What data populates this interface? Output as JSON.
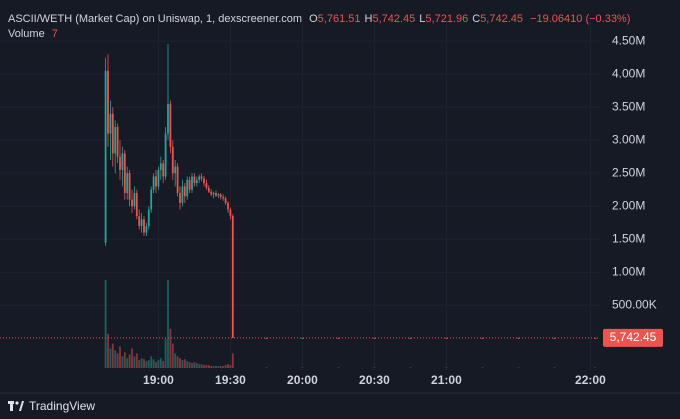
{
  "header": {
    "title": "ASCII/WETH (Market Cap) on Uniswap, 1, dexscreener.com",
    "ohlc": [
      {
        "key": "O",
        "value": "5,761.51"
      },
      {
        "key": "H",
        "value": "5,742.45"
      },
      {
        "key": "L",
        "value": "5,721.96"
      },
      {
        "key": "C",
        "value": "5,742.45"
      }
    ],
    "change": "−19.06410 (−0.33%)",
    "volume_label": "Volume"
  },
  "brand": "TradingView",
  "chart_data": {
    "type": "candlestick",
    "up_color": "#26a69a",
    "down_color": "#ef5350",
    "x": [
      "18:38",
      "18:39",
      "18:40",
      "18:41",
      "18:42",
      "18:43",
      "18:44",
      "18:45",
      "18:46",
      "18:47",
      "18:48",
      "18:49",
      "18:50",
      "18:51",
      "18:52",
      "18:53",
      "18:54",
      "18:55",
      "18:56",
      "18:57",
      "18:58",
      "18:59",
      "19:00",
      "19:01",
      "19:02",
      "19:03",
      "19:04",
      "19:05",
      "19:06",
      "19:07",
      "19:08",
      "19:09",
      "19:10",
      "19:11",
      "19:12",
      "19:13",
      "19:14",
      "19:15",
      "19:16",
      "19:17",
      "19:18",
      "19:19",
      "19:20",
      "19:21",
      "19:22",
      "19:23",
      "19:24",
      "19:25",
      "19:26",
      "19:27",
      "19:28",
      "19:29",
      "19:30",
      "19:31",
      "19:45",
      "20:00",
      "20:15",
      "20:30",
      "20:45",
      "21:00",
      "21:15",
      "21:30",
      "21:45",
      "22:02"
    ],
    "open": [
      1450000,
      4050000,
      3100000,
      3400000,
      2800000,
      3200000,
      2750000,
      2550000,
      2800000,
      2200000,
      2500000,
      2100000,
      2000000,
      2200000,
      1850000,
      1700000,
      1800000,
      1600000,
      1700000,
      1950000,
      2250000,
      2450000,
      2300000,
      2550000,
      2650000,
      2450000,
      3100000,
      3550000,
      2900000,
      2500000,
      2600000,
      2200000,
      2050000,
      2300000,
      2150000,
      2400000,
      2250000,
      2450000,
      2350000,
      2400000,
      2450000,
      2420000,
      2350000,
      2280000,
      2220000,
      2180000,
      2200000,
      2160000,
      2180000,
      2140000,
      2120000,
      2050000,
      1950000,
      1850000,
      5900,
      5850,
      5880,
      5820,
      5800,
      5790,
      5780,
      5770,
      5765,
      5761.51
    ],
    "high": [
      4250000,
      4300000,
      3600000,
      3500000,
      3300000,
      3250000,
      3000000,
      2900000,
      2850000,
      2600000,
      2550000,
      2250000,
      2300000,
      2250000,
      1950000,
      1900000,
      1850000,
      1750000,
      2000000,
      2300000,
      2500000,
      2550000,
      2600000,
      2750000,
      2700000,
      3200000,
      4450000,
      3600000,
      3000000,
      2700000,
      2650000,
      2300000,
      2400000,
      2350000,
      2450000,
      2450000,
      2500000,
      2500000,
      2450000,
      2480000,
      2500000,
      2460000,
      2400000,
      2320000,
      2260000,
      2220000,
      2240000,
      2200000,
      2200000,
      2180000,
      2150000,
      2080000,
      1980000,
      1880000,
      5950,
      5900,
      5920,
      5860,
      5830,
      5820,
      5800,
      5790,
      5780,
      5742.45
    ],
    "low": [
      1400000,
      2900000,
      2700000,
      2600000,
      2500000,
      2650000,
      2400000,
      2300000,
      2100000,
      2100000,
      2000000,
      1900000,
      1950000,
      1800000,
      1650000,
      1600000,
      1550000,
      1550000,
      1650000,
      1900000,
      2200000,
      2200000,
      2250000,
      2400000,
      2350000,
      2400000,
      3000000,
      2800000,
      2400000,
      2300000,
      2150000,
      1950000,
      2000000,
      2050000,
      2100000,
      2200000,
      2200000,
      2300000,
      2300000,
      2350000,
      2380000,
      2300000,
      2250000,
      2200000,
      2150000,
      2120000,
      2140000,
      2120000,
      2100000,
      2080000,
      2020000,
      1900000,
      1800000,
      5700,
      5800,
      5800,
      5810,
      5780,
      5770,
      5760,
      5750,
      5740,
      5730,
      5721.96
    ],
    "close": [
      4050000,
      3100000,
      3400000,
      2800000,
      3200000,
      2750000,
      2550000,
      2800000,
      2200000,
      2500000,
      2100000,
      2000000,
      2200000,
      1850000,
      1700000,
      1800000,
      1600000,
      1700000,
      1950000,
      2250000,
      2450000,
      2300000,
      2550000,
      2650000,
      2450000,
      3100000,
      3550000,
      2900000,
      2500000,
      2600000,
      2200000,
      2050000,
      2300000,
      2150000,
      2400000,
      2250000,
      2450000,
      2350000,
      2400000,
      2450000,
      2420000,
      2350000,
      2280000,
      2220000,
      2180000,
      2200000,
      2160000,
      2180000,
      2140000,
      2120000,
      2050000,
      1950000,
      1850000,
      5900,
      5850,
      5880,
      5820,
      5800,
      5790,
      5780,
      5770,
      5765,
      5761.51,
      5742.45
    ],
    "volume": [
      90000,
      35000,
      20000,
      25000,
      18000,
      15000,
      22000,
      12000,
      16000,
      10000,
      14000,
      20000,
      12000,
      15000,
      8000,
      10000,
      9000,
      7000,
      8000,
      12000,
      9000,
      6000,
      8000,
      10000,
      7000,
      30000,
      90000,
      40000,
      25000,
      15000,
      12000,
      10000,
      8000,
      9000,
      7000,
      6000,
      5000,
      6000,
      5000,
      4000,
      4000,
      3000,
      3000,
      3000,
      2000,
      2000,
      2000,
      2000,
      2000,
      2000,
      3000,
      4000,
      3000,
      15000,
      500,
      400,
      300,
      300,
      200,
      200,
      200,
      150,
      100,
      7
    ],
    "xlim": [
      "17:54",
      "22:04"
    ],
    "xticks": [
      "19:00",
      "19:30",
      "20:00",
      "20:30",
      "21:00",
      "22:00"
    ],
    "ylim": [
      -480000,
      4820000
    ],
    "yticks": [
      {
        "value": 500000,
        "label": "500.00K"
      },
      {
        "value": 1000000,
        "label": "1.00M"
      },
      {
        "value": 1500000,
        "label": "1.50M"
      },
      {
        "value": 2000000,
        "label": "2.00M"
      },
      {
        "value": 2500000,
        "label": "2.50M"
      },
      {
        "value": 3000000,
        "label": "3.00M"
      },
      {
        "value": 3500000,
        "label": "3.50M"
      },
      {
        "value": 4000000,
        "label": "4.00M"
      },
      {
        "value": 4500000,
        "label": "4.50M"
      }
    ],
    "last_price": {
      "value": 5742.45,
      "label": "5,742.45"
    }
  }
}
